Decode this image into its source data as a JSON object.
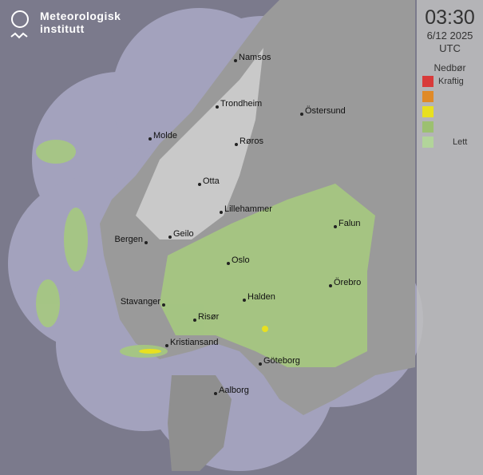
{
  "logo": {
    "line1": "Meteorologisk",
    "line2": "institutt"
  },
  "panel": {
    "time": "03:30",
    "date": "6/12 2025",
    "timezone": "UTC",
    "legend_title": "Nedbør",
    "legend": [
      {
        "color": "#d83a3a",
        "label": "Kraftig"
      },
      {
        "color": "#e08a28",
        "label": ""
      },
      {
        "color": "#e8e020",
        "label": ""
      },
      {
        "color": "#9cc070",
        "label": ""
      },
      {
        "color": "#b2d49a",
        "label": "Lett"
      }
    ]
  },
  "cities": [
    {
      "name": "Namsos"
    },
    {
      "name": "Trondheim"
    },
    {
      "name": "Östersund"
    },
    {
      "name": "Molde"
    },
    {
      "name": "Røros"
    },
    {
      "name": "Otta"
    },
    {
      "name": "Lillehammer"
    },
    {
      "name": "Falun"
    },
    {
      "name": "Bergen"
    },
    {
      "name": "Geilo"
    },
    {
      "name": "Oslo"
    },
    {
      "name": "Örebro"
    },
    {
      "name": "Stavanger"
    },
    {
      "name": "Halden"
    },
    {
      "name": "Risør"
    },
    {
      "name": "Kristiansand"
    },
    {
      "name": "Göteborg"
    },
    {
      "name": "Aalborg"
    }
  ]
}
